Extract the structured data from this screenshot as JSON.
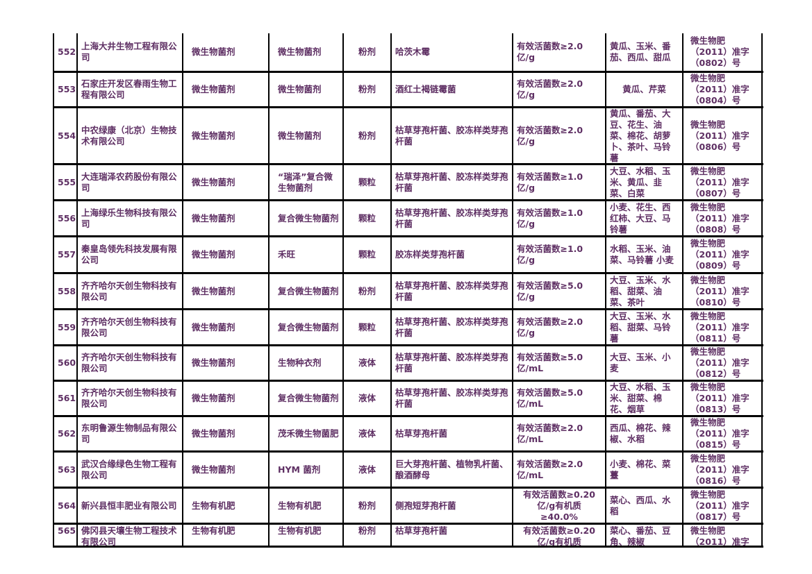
{
  "colors": {
    "text": "#5e2f63",
    "border": "#000000",
    "background": "#ffffff"
  },
  "table": {
    "rows": [
      {
        "no": "552",
        "company": "上海大井生物工程有限公司",
        "category": "微生物菌剂",
        "product": "微生物菌剂",
        "form": "粉剂",
        "strains": "哈茨木霉",
        "spec": "有效活菌数≥2.0\n亿/g",
        "crops": "黄瓜、玉米、番茄、西瓜、甜瓜",
        "reg": "微生物肥\n（2011）准字\n（0802）号"
      },
      {
        "no": "553",
        "company": "石家庄开发区春雨生物工程有限公司",
        "category": "微生物菌剂",
        "product": "微生物菌剂",
        "form": "粉剂",
        "strains": "酒红土褐链霉菌",
        "spec": "有效活菌数≥2.0\n亿/g",
        "crops": "黄瓜、芹菜",
        "reg": "微生物肥\n（2011）准字\n（0804）号"
      },
      {
        "no": "554",
        "company": "中农绿康（北京）生物技术有限公司",
        "category": "微生物菌剂",
        "product": "微生物菌剂",
        "form": "粉剂",
        "strains": "枯草芽孢杆菌、胶冻样类芽孢杆菌",
        "spec": "有效活菌数≥2.0\n亿/g",
        "crops": "黄瓜、番茄、大豆、花生、油菜、棉花、胡萝卜、茶叶、马铃薯",
        "reg": "微生物肥\n（2011）准字\n（0806）号"
      },
      {
        "no": "555",
        "company": "大连瑞泽农药股份有限公司",
        "category": "微生物菌剂",
        "product": "“瑞泽”复合微生物菌剂",
        "form": "颗粒",
        "strains": "枯草芽孢杆菌、胶冻样类芽孢杆菌",
        "spec": "有效活菌数≥1.0\n亿/g",
        "crops": "大豆、水稻、玉米、黄瓜、韭菜、白菜",
        "reg": "微生物肥\n（2011）准字\n（0807）号"
      },
      {
        "no": "556",
        "company": "上海绿乐生物科技有限公司",
        "category": "微生物菌剂",
        "product": "复合微生物菌剂",
        "form": "颗粒",
        "strains": "枯草芽孢杆菌、胶冻样类芽孢杆菌",
        "spec": "有效活菌数≥1.0\n亿/g",
        "crops": "小麦、花生、西红柿、大豆、马铃薯",
        "reg": "微生物肥\n（2011）准字\n（0808）号"
      },
      {
        "no": "557",
        "company": "秦皇岛领先科技发展有限公司",
        "category": "微生物菌剂",
        "product": "禾旺",
        "form": "颗粒",
        "strains": "胶冻样类芽孢杆菌",
        "spec": "有效活菌数≥1.0\n亿/g",
        "crops": "水稻、玉米、油菜、马铃薯 小麦",
        "reg": "微生物肥\n（2011）准字\n（0809）号"
      },
      {
        "no": "558",
        "company": "齐齐哈尔天创生物科技有限公司",
        "category": "微生物菌剂",
        "product": "复合微生物菌剂",
        "form": "粉剂",
        "strains": "枯草芽孢杆菌、胶冻样类芽孢杆菌",
        "spec": "有效活菌数≥5.0\n亿/g",
        "crops": "大豆、玉米、水稻、甜菜、油菜、茶叶",
        "reg": "微生物肥\n（2011）准字\n（0810）号"
      },
      {
        "no": "559",
        "company": "齐齐哈尔天创生物科技有限公司",
        "category": "微生物菌剂",
        "product": "复合微生物菌剂",
        "form": "颗粒",
        "strains": "枯草芽孢杆菌、胶冻样类芽孢杆菌",
        "spec": "有效活菌数≥2.0\n亿/g",
        "crops": "大豆、玉米、水稻、甜菜、马铃薯",
        "reg": "微生物肥\n（2011）准字\n（0811）号"
      },
      {
        "no": "560",
        "company": "齐齐哈尔天创生物科技有限公司",
        "category": "微生物菌剂",
        "product": "生物种衣剂",
        "form": "液体",
        "strains": "枯草芽孢杆菌、胶冻样类芽孢杆菌",
        "spec": "有效活菌数≥5.0\n亿/mL",
        "crops": "大豆、玉米、小麦",
        "reg": "微生物肥\n（2011）准字\n（0812）号"
      },
      {
        "no": "561",
        "company": "齐齐哈尔天创生物科技有限公司",
        "category": "微生物菌剂",
        "product": "复合微生物菌剂",
        "form": "液体",
        "strains": "枯草芽孢杆菌、胶冻样类芽孢杆菌",
        "spec": "有效活菌数≥5.0\n亿/mL",
        "crops": "大豆、水稻、玉米、甜菜、棉花、烟草",
        "reg": "微生物肥\n（2011）准字\n（0813）号"
      },
      {
        "no": "562",
        "company": "东明鲁源生物制品有限公司",
        "category": "微生物菌剂",
        "product": "茂禾微生物菌肥",
        "form": "液体",
        "strains": "枯草芽孢杆菌",
        "spec": "有效活菌数≥2.0\n亿/mL",
        "crops": "西瓜、棉花、辣椒、水稻",
        "reg": "微生物肥\n（2011）准字\n（0815）号"
      },
      {
        "no": "563",
        "company": "武汉合缘绿色生物工程有限公司",
        "category": "微生物菌剂",
        "product": "HYM 菌剂",
        "form": "液体",
        "strains": "巨大芽孢杆菌、植物乳杆菌、酿酒酵母",
        "spec": "有效活菌数≥2.0\n亿/mL",
        "crops": "小麦、棉花、菜薹",
        "reg": "微生物肥\n（2011）准字\n（0816）号"
      },
      {
        "no": "564",
        "company": "新兴县恒丰肥业有限公司",
        "category": "生物有机肥",
        "product": "生物有机肥",
        "form": "粉剂",
        "strains": "侧孢短芽孢杆菌",
        "spec": "有效活菌数≥0.20\n亿/g有机质\n≥40.0%",
        "crops": "菜心、西瓜、水稻",
        "reg": "微生物肥\n（2011）准字\n（0817）号"
      },
      {
        "no": "565",
        "company": "佛冈县天壤生物工程技术有限公司",
        "category": "生物有机肥",
        "product": "生物有机肥",
        "form": "粉剂",
        "strains": "枯草芽孢杆菌",
        "spec": "有效活菌数≥0.20\n亿/g有机质",
        "crops": "菜心、番茄、豆角、辣椒",
        "reg": "微生物肥\n（2011）准字"
      }
    ]
  }
}
